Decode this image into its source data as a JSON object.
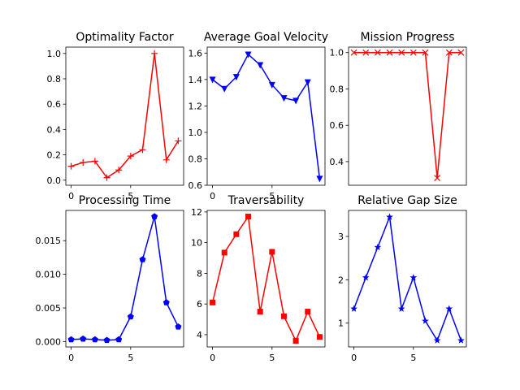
{
  "chart_data": [
    {
      "type": "line",
      "title": "Optimality Factor",
      "xlabel": "",
      "ylabel": "",
      "xlim": [
        -0.45,
        9.45
      ],
      "ylim": [
        -0.04,
        1.05
      ],
      "xticks": [
        0,
        5
      ],
      "xtick_labels": [
        "0",
        "5"
      ],
      "yticks": [
        0.0,
        0.2,
        0.4,
        0.6,
        0.8,
        1.0
      ],
      "ytick_labels": [
        "0.0",
        "0.2",
        "0.4",
        "0.6",
        "0.8",
        "1.0"
      ],
      "color": "#ff0000",
      "marker": "plus",
      "x": [
        0,
        1,
        2,
        3,
        4,
        5,
        6,
        7,
        8,
        9
      ],
      "values": [
        0.11,
        0.14,
        0.15,
        0.02,
        0.08,
        0.19,
        0.24,
        1.0,
        0.16,
        0.31
      ]
    },
    {
      "type": "line",
      "title": "Average Goal Velocity",
      "xlabel": "",
      "ylabel": "",
      "xlim": [
        -0.45,
        9.45
      ],
      "ylim": [
        0.6,
        1.645
      ],
      "xticks": [
        0,
        5
      ],
      "xtick_labels": [
        "0",
        "5"
      ],
      "yticks": [
        0.6,
        0.8,
        1.0,
        1.2,
        1.4,
        1.6
      ],
      "ytick_labels": [
        "0.6",
        "0.8",
        "1.0",
        "1.2",
        "1.4",
        "1.6"
      ],
      "color": "#0000ff",
      "marker": "triangle-down",
      "x": [
        0,
        1,
        2,
        3,
        4,
        5,
        6,
        7,
        8,
        9
      ],
      "values": [
        1.4,
        1.33,
        1.42,
        1.59,
        1.51,
        1.36,
        1.26,
        1.24,
        1.38,
        0.65
      ]
    },
    {
      "type": "line",
      "title": "Mission Progress",
      "xlabel": "",
      "ylabel": "",
      "xlim": [
        -0.45,
        9.45
      ],
      "ylim": [
        0.27,
        1.03
      ],
      "xticks": [],
      "xtick_labels": [],
      "yticks": [
        0.4,
        0.6,
        0.8,
        1.0
      ],
      "ytick_labels": [
        "0.4",
        "0.6",
        "0.8",
        "1.0"
      ],
      "color": "#ff0000",
      "marker": "x",
      "x": [
        0,
        1,
        2,
        3,
        4,
        5,
        6,
        7,
        8,
        9
      ],
      "values": [
        1.0,
        1.0,
        1.0,
        1.0,
        1.0,
        1.0,
        1.0,
        0.31,
        1.0,
        1.0
      ]
    },
    {
      "type": "line",
      "title": "Processing Time",
      "xlabel": "",
      "ylabel": "",
      "xlim": [
        -0.45,
        9.45
      ],
      "ylim": [
        -0.0008,
        0.0195
      ],
      "xticks": [
        0,
        5
      ],
      "xtick_labels": [
        "0",
        "5"
      ],
      "yticks": [
        0.0,
        0.005,
        0.01,
        0.015
      ],
      "ytick_labels": [
        "0.000",
        "0.005",
        "0.010",
        "0.015"
      ],
      "color": "#0000ff",
      "marker": "pentagon",
      "x": [
        0,
        1,
        2,
        3,
        4,
        5,
        6,
        7,
        8,
        9
      ],
      "values": [
        0.0003,
        0.0004,
        0.0003,
        0.0002,
        0.0003,
        0.0037,
        0.0122,
        0.0186,
        0.0058,
        0.0022
      ]
    },
    {
      "type": "line",
      "title": "Traversability",
      "xlabel": "",
      "ylabel": "",
      "xlim": [
        -0.45,
        9.45
      ],
      "ylim": [
        3.2,
        12.1
      ],
      "xticks": [
        0,
        5
      ],
      "xtick_labels": [
        "0",
        "5"
      ],
      "yticks": [
        4,
        6,
        8,
        10,
        12
      ],
      "ytick_labels": [
        "4",
        "6",
        "8",
        "10",
        "12"
      ],
      "color": "#ff0000",
      "marker": "square",
      "x": [
        0,
        1,
        2,
        3,
        4,
        5,
        6,
        7,
        8,
        9
      ],
      "values": [
        6.1,
        9.35,
        10.55,
        11.7,
        5.5,
        9.4,
        5.2,
        3.6,
        5.5,
        3.85
      ]
    },
    {
      "type": "line",
      "title": "Relative Gap Size",
      "xlabel": "",
      "ylabel": "",
      "xlim": [
        -0.45,
        9.45
      ],
      "ylim": [
        0.45,
        3.6
      ],
      "xticks": [
        0,
        5
      ],
      "xtick_labels": [
        "0",
        "5"
      ],
      "yticks": [
        1,
        2,
        3
      ],
      "ytick_labels": [
        "1",
        "2",
        "3"
      ],
      "color": "#0000ff",
      "marker": "star",
      "x": [
        0,
        1,
        2,
        3,
        4,
        5,
        6,
        7,
        8,
        9
      ],
      "values": [
        1.33,
        2.05,
        2.75,
        3.45,
        1.33,
        2.05,
        1.05,
        0.6,
        1.33,
        0.6
      ]
    }
  ]
}
